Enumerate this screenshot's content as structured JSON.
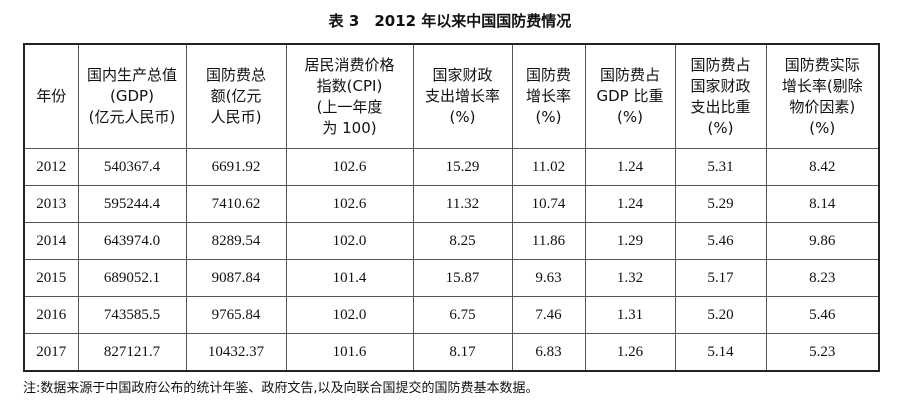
{
  "title": "表 3　2012 年以来中国国防费情况",
  "table": {
    "headers": [
      [
        "年份"
      ],
      [
        "国内生产总值",
        "(GDP)",
        "(亿元人民币)"
      ],
      [
        "国防费总",
        "额(亿元",
        "人民币)"
      ],
      [
        "居民消费价格",
        "指数(CPI)",
        "(上一年度",
        "为 100)"
      ],
      [
        "国家财政",
        "支出增长率",
        "(%)"
      ],
      [
        "国防费",
        "增长率",
        "(%)"
      ],
      [
        "国防费占",
        "GDP 比重",
        "(%)"
      ],
      [
        "国防费占",
        "国家财政",
        "支出比重",
        "(%)"
      ],
      [
        "国防费实际",
        "增长率(剔除",
        "物价因素)",
        "(%)"
      ]
    ],
    "rows": [
      [
        "2012",
        "540367.4",
        "6691.92",
        "102.6",
        "15.29",
        "11.02",
        "1.24",
        "5.31",
        "8.42"
      ],
      [
        "2013",
        "595244.4",
        "7410.62",
        "102.6",
        "11.32",
        "10.74",
        "1.24",
        "5.29",
        "8.14"
      ],
      [
        "2014",
        "643974.0",
        "8289.54",
        "102.0",
        "8.25",
        "11.86",
        "1.29",
        "5.46",
        "9.86"
      ],
      [
        "2015",
        "689052.1",
        "9087.84",
        "101.4",
        "15.87",
        "9.63",
        "1.32",
        "5.17",
        "8.23"
      ],
      [
        "2016",
        "743585.5",
        "9765.84",
        "102.0",
        "6.75",
        "7.46",
        "1.31",
        "5.20",
        "5.46"
      ],
      [
        "2017",
        "827121.7",
        "10432.37",
        "101.6",
        "8.17",
        "6.83",
        "1.26",
        "5.14",
        "5.23"
      ]
    ]
  },
  "note": "注:数据来源于中国政府公布的统计年鉴、政府文告,以及向联合国提交的国防费基本数据。"
}
